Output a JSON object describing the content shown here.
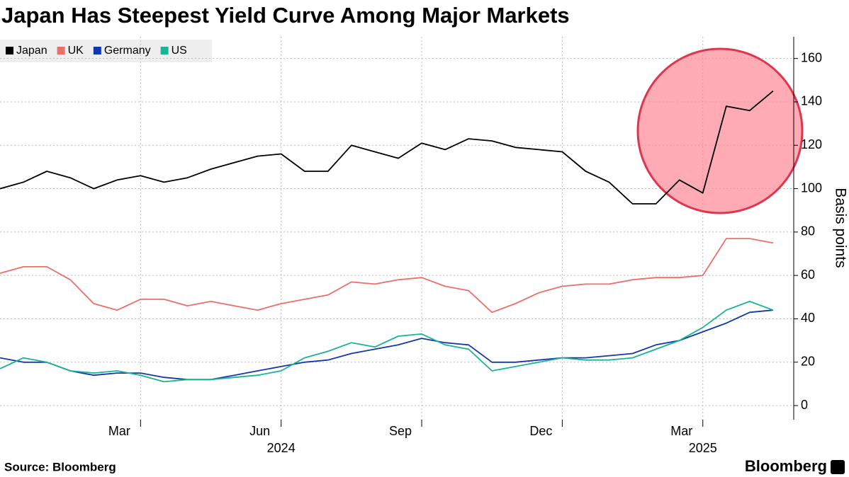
{
  "chart_data": {
    "type": "line",
    "title": "Japan Has Steepest Yield Curve Among Major Markets",
    "y_label": "Basis points",
    "source": "Source: Bloomberg",
    "logo": "Bloomberg",
    "years": [
      "2024",
      "2025"
    ],
    "x": [
      0,
      0.5,
      1,
      1.5,
      2,
      2.5,
      3,
      3.5,
      4,
      4.5,
      5,
      5.5,
      6,
      6.5,
      7,
      7.5,
      8,
      8.5,
      9,
      9.5,
      10,
      10.5,
      11,
      11.5,
      12,
      12.5,
      13,
      13.5,
      14,
      14.5,
      15,
      15.5,
      16,
      16.5
    ],
    "xlim": [
      0,
      16.94
    ],
    "xticks": [
      {
        "value": 3,
        "label": "Mar"
      },
      {
        "value": 6,
        "label": "Jun"
      },
      {
        "value": 9,
        "label": "Sep"
      },
      {
        "value": 12,
        "label": "Dec"
      },
      {
        "value": 15,
        "label": "Mar"
      }
    ],
    "ylim": [
      -6.5,
      170
    ],
    "yticks": [
      0,
      20,
      40,
      60,
      80,
      100,
      120,
      140,
      160
    ],
    "grid": true,
    "legend": "top-left",
    "series": [
      {
        "name": "Japan",
        "color": "#000000",
        "values": [
          100,
          103,
          108,
          105,
          100,
          104,
          106,
          103,
          105,
          109,
          112,
          115,
          116,
          108,
          108,
          120,
          117,
          114,
          121,
          118,
          123,
          122,
          119,
          118,
          117,
          108,
          103,
          93,
          93,
          104,
          98,
          138,
          136,
          145
        ]
      },
      {
        "name": "UK",
        "color": "#ee6e6a",
        "values": [
          61,
          64,
          64,
          58,
          47,
          44,
          49,
          49,
          46,
          48,
          46,
          44,
          47,
          49,
          51,
          57,
          56,
          58,
          59,
          55,
          53,
          43,
          47,
          52,
          55,
          56,
          56,
          58,
          59,
          59,
          60,
          77,
          77,
          75
        ]
      },
      {
        "name": "Germany",
        "color": "#1238b0",
        "values": [
          22,
          20,
          20,
          16,
          14,
          15,
          15,
          13,
          12,
          12,
          14,
          16,
          18,
          20,
          21,
          24,
          26,
          28,
          31,
          29,
          28,
          20,
          20,
          21,
          22,
          22,
          23,
          24,
          28,
          30,
          34,
          38,
          43,
          44
        ]
      },
      {
        "name": "US",
        "color": "#1ab394",
        "values": [
          17,
          22,
          20,
          16,
          15,
          16,
          14,
          11,
          12,
          12,
          13,
          14,
          16,
          22,
          25,
          29,
          27,
          32,
          33,
          28,
          26,
          16,
          18,
          20,
          22,
          21,
          21,
          22,
          26,
          30,
          36,
          44,
          48,
          44
        ]
      }
    ]
  }
}
